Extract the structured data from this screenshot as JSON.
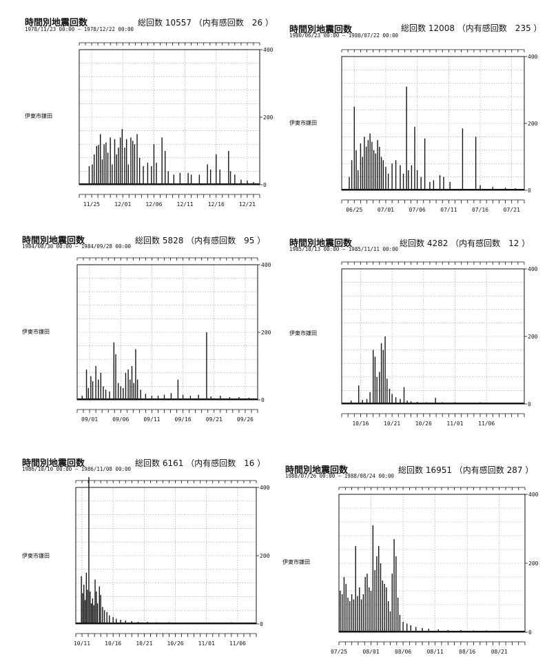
{
  "chart_data": [
    {
      "type": "bar",
      "title": "時間別地震回数",
      "date_range": "1978/11/23 00:00 — 1978/12/22 00:00",
      "total_label": "総回数 10557 （内有感回数　26 ）",
      "station": "伊東市鎌田",
      "yticks": [
        "400",
        "200",
        "0"
      ],
      "ylim": [
        0,
        400
      ],
      "xticks": [
        "11/25",
        "12/01",
        "12/06",
        "12/11",
        "12/16",
        "12/21"
      ],
      "days": 29,
      "first_label_day": 2,
      "bars": [
        [
          1.6,
          55
        ],
        [
          2.1,
          60
        ],
        [
          2.4,
          90
        ],
        [
          2.8,
          115
        ],
        [
          3.1,
          118
        ],
        [
          3.4,
          150
        ],
        [
          3.7,
          75
        ],
        [
          4.0,
          120
        ],
        [
          4.3,
          125
        ],
        [
          4.6,
          95
        ],
        [
          5.0,
          140
        ],
        [
          5.3,
          60
        ],
        [
          5.7,
          135
        ],
        [
          6.0,
          90
        ],
        [
          6.3,
          110
        ],
        [
          6.6,
          140
        ],
        [
          6.9,
          165
        ],
        [
          7.3,
          110
        ],
        [
          7.6,
          135
        ],
        [
          7.9,
          60
        ],
        [
          8.3,
          140
        ],
        [
          8.6,
          130
        ],
        [
          8.9,
          120
        ],
        [
          9.3,
          150
        ],
        [
          9.7,
          80
        ],
        [
          10.3,
          55
        ],
        [
          11.0,
          65
        ],
        [
          11.6,
          55
        ],
        [
          12.0,
          120
        ],
        [
          12.4,
          65
        ],
        [
          13.3,
          140
        ],
        [
          13.8,
          100
        ],
        [
          14.3,
          40
        ],
        [
          15.2,
          30
        ],
        [
          16.2,
          35
        ],
        [
          17.5,
          35
        ],
        [
          18.0,
          30
        ],
        [
          19.3,
          30
        ],
        [
          20.6,
          60
        ],
        [
          21.1,
          45
        ],
        [
          22.0,
          90
        ],
        [
          22.6,
          45
        ],
        [
          24.0,
          100
        ],
        [
          24.3,
          40
        ],
        [
          25.0,
          30
        ],
        [
          26.0,
          15
        ],
        [
          27.0,
          12
        ],
        [
          28.0,
          8
        ]
      ]
    },
    {
      "type": "bar",
      "title": "時間別地震回数",
      "date_range": "1980/06/23 00:00 — 1980/07/22 00:00",
      "total_label": "総回数 12008 （内有感回数　235 ）",
      "station": "伊東市鎌田",
      "yticks": [
        "400",
        "200",
        "0"
      ],
      "ylim": [
        0,
        400
      ],
      "xticks": [
        "06/25",
        "07/01",
        "07/06",
        "07/11",
        "07/16",
        "07/21"
      ],
      "days": 29,
      "first_label_day": 2,
      "bars": [
        [
          1.2,
          40
        ],
        [
          1.6,
          90
        ],
        [
          2.0,
          250
        ],
        [
          2.3,
          120
        ],
        [
          2.6,
          60
        ],
        [
          3.0,
          140
        ],
        [
          3.3,
          100
        ],
        [
          3.6,
          160
        ],
        [
          3.9,
          130
        ],
        [
          4.2,
          150
        ],
        [
          4.5,
          170
        ],
        [
          4.8,
          145
        ],
        [
          5.1,
          120
        ],
        [
          5.4,
          110
        ],
        [
          5.7,
          150
        ],
        [
          6.0,
          130
        ],
        [
          6.3,
          100
        ],
        [
          6.6,
          90
        ],
        [
          7.0,
          70
        ],
        [
          7.4,
          50
        ],
        [
          8.0,
          80
        ],
        [
          8.6,
          90
        ],
        [
          9.3,
          75
        ],
        [
          9.8,
          50
        ],
        [
          10.3,
          310
        ],
        [
          10.6,
          60
        ],
        [
          11.1,
          75
        ],
        [
          11.6,
          190
        ],
        [
          12.0,
          60
        ],
        [
          12.6,
          40
        ],
        [
          13.2,
          155
        ],
        [
          14.0,
          25
        ],
        [
          14.6,
          30
        ],
        [
          15.6,
          45
        ],
        [
          16.2,
          40
        ],
        [
          17.2,
          25
        ],
        [
          19.2,
          185
        ],
        [
          21.3,
          160
        ],
        [
          22.0,
          15
        ],
        [
          24.0,
          10
        ],
        [
          26.0,
          8
        ],
        [
          27.6,
          6
        ]
      ]
    },
    {
      "type": "bar",
      "title": "時間別地震回数",
      "date_range": "1984/08/30 00:00 — 1984/09/28 00:00",
      "total_label": "総回数 5828 （内有感回数　95 ）",
      "station": "伊東市鎌田",
      "yticks": [
        "400",
        "200",
        "0"
      ],
      "ylim": [
        0,
        400
      ],
      "xticks": [
        "09/01",
        "09/06",
        "09/11",
        "09/16",
        "09/21",
        "09/26"
      ],
      "days": 29,
      "first_label_day": 2,
      "bars": [
        [
          0.8,
          12
        ],
        [
          1.5,
          90
        ],
        [
          1.8,
          35
        ],
        [
          2.2,
          70
        ],
        [
          2.5,
          55
        ],
        [
          3.0,
          100
        ],
        [
          3.4,
          60
        ],
        [
          3.8,
          80
        ],
        [
          4.2,
          40
        ],
        [
          4.6,
          30
        ],
        [
          5.2,
          25
        ],
        [
          5.9,
          170
        ],
        [
          6.2,
          135
        ],
        [
          6.6,
          50
        ],
        [
          7.0,
          40
        ],
        [
          7.4,
          35
        ],
        [
          7.8,
          80
        ],
        [
          8.2,
          90
        ],
        [
          8.5,
          60
        ],
        [
          8.8,
          100
        ],
        [
          9.1,
          50
        ],
        [
          9.4,
          150
        ],
        [
          9.7,
          60
        ],
        [
          10.2,
          30
        ],
        [
          11.0,
          18
        ],
        [
          12.0,
          12
        ],
        [
          13.0,
          12
        ],
        [
          14.0,
          15
        ],
        [
          15.1,
          20
        ],
        [
          16.2,
          60
        ],
        [
          17.0,
          15
        ],
        [
          18.2,
          12
        ],
        [
          19.5,
          15
        ],
        [
          20.8,
          200
        ],
        [
          21.5,
          10
        ],
        [
          23.0,
          12
        ],
        [
          24.5,
          8
        ],
        [
          26.0,
          8
        ],
        [
          27.6,
          6
        ]
      ]
    },
    {
      "type": "bar",
      "title": "時間別地震回数",
      "date_range": "1985/10/13 00:00 — 1985/11/11 00:00",
      "total_label": "総回数 4282 （内有感回数　12 ）",
      "station": "伊東市鎌田",
      "yticks": [
        "400",
        "200",
        "0"
      ],
      "ylim": [
        0,
        400
      ],
      "xticks": [
        "10/16",
        "10/21",
        "10/26",
        "11/01",
        "11/06"
      ],
      "days": 29,
      "first_label_day": 3,
      "bars": [
        [
          1.5,
          10
        ],
        [
          2.7,
          55
        ],
        [
          3.3,
          12
        ],
        [
          4.0,
          15
        ],
        [
          4.5,
          35
        ],
        [
          5.0,
          160
        ],
        [
          5.3,
          140
        ],
        [
          5.6,
          80
        ],
        [
          6.0,
          95
        ],
        [
          6.3,
          180
        ],
        [
          6.6,
          160
        ],
        [
          6.9,
          200
        ],
        [
          7.2,
          75
        ],
        [
          7.6,
          45
        ],
        [
          8.0,
          30
        ],
        [
          8.6,
          20
        ],
        [
          9.3,
          15
        ],
        [
          9.9,
          50
        ],
        [
          10.4,
          10
        ],
        [
          11.0,
          8
        ],
        [
          12.0,
          6
        ],
        [
          13.5,
          5
        ],
        [
          14.9,
          18
        ],
        [
          16.0,
          5
        ],
        [
          18.0,
          5
        ],
        [
          20.0,
          4
        ],
        [
          22.0,
          5
        ],
        [
          24.0,
          4
        ],
        [
          26.0,
          4
        ],
        [
          27.5,
          3
        ]
      ]
    },
    {
      "type": "bar",
      "title": "時間別地震回数",
      "date_range": "1986/10/10 00:00 — 1986/11/08 00:00",
      "total_label": "総回数 6161 （内有感回数　16 ）",
      "station": "伊東市鎌田",
      "yticks": [
        "400",
        "200",
        "0"
      ],
      "ylim": [
        0,
        400
      ],
      "xticks": [
        "10/11",
        "10/16",
        "10/21",
        "10/26",
        "11/01",
        "11/06"
      ],
      "days": 29,
      "first_label_day": 1,
      "bars": [
        [
          0.9,
          140
        ],
        [
          1.1,
          90
        ],
        [
          1.3,
          115
        ],
        [
          1.5,
          70
        ],
        [
          1.7,
          150
        ],
        [
          1.9,
          100
        ],
        [
          2.1,
          430
        ],
        [
          2.3,
          95
        ],
        [
          2.5,
          60
        ],
        [
          2.7,
          75
        ],
        [
          2.9,
          55
        ],
        [
          3.1,
          130
        ],
        [
          3.3,
          95
        ],
        [
          3.5,
          60
        ],
        [
          3.8,
          110
        ],
        [
          4.0,
          85
        ],
        [
          4.3,
          50
        ],
        [
          4.6,
          40
        ],
        [
          5.0,
          35
        ],
        [
          5.4,
          25
        ],
        [
          6.0,
          20
        ],
        [
          6.5,
          15
        ],
        [
          7.2,
          12
        ],
        [
          8.0,
          10
        ],
        [
          9.0,
          8
        ],
        [
          10.0,
          6
        ],
        [
          11.5,
          6
        ],
        [
          13.0,
          5
        ],
        [
          15.0,
          5
        ],
        [
          17.0,
          4
        ],
        [
          19.0,
          4
        ],
        [
          21.0,
          4
        ],
        [
          23.0,
          3
        ],
        [
          25.0,
          5
        ],
        [
          27.0,
          3
        ],
        [
          28.5,
          3
        ]
      ]
    },
    {
      "type": "bar",
      "title": "時間別地震回数",
      "date_range": "1988/07/26 00:00 — 1988/08/24 00:00",
      "total_label": "総回数 16951 （内有感回数 287 ）",
      "station": "伊東市鎌田",
      "yticks": [
        "400",
        "200",
        "0"
      ],
      "ylim": [
        0,
        400
      ],
      "xticks": [
        "07/25",
        "08/01",
        "08/06",
        "08/11",
        "08/16",
        "08/21"
      ],
      "days": 29,
      "first_label_day": 0,
      "bars": [
        [
          0.2,
          120
        ],
        [
          0.5,
          110
        ],
        [
          0.8,
          160
        ],
        [
          1.1,
          140
        ],
        [
          1.4,
          100
        ],
        [
          1.7,
          90
        ],
        [
          2.0,
          110
        ],
        [
          2.3,
          95
        ],
        [
          2.6,
          250
        ],
        [
          2.9,
          105
        ],
        [
          3.2,
          130
        ],
        [
          3.5,
          95
        ],
        [
          3.8,
          110
        ],
        [
          4.1,
          160
        ],
        [
          4.4,
          170
        ],
        [
          4.7,
          130
        ],
        [
          5.0,
          120
        ],
        [
          5.3,
          310
        ],
        [
          5.6,
          180
        ],
        [
          5.9,
          220
        ],
        [
          6.2,
          250
        ],
        [
          6.5,
          200
        ],
        [
          6.8,
          150
        ],
        [
          7.1,
          140
        ],
        [
          7.4,
          130
        ],
        [
          7.7,
          90
        ],
        [
          8.0,
          60
        ],
        [
          8.3,
          170
        ],
        [
          8.6,
          270
        ],
        [
          8.9,
          220
        ],
        [
          9.2,
          100
        ],
        [
          9.5,
          50
        ],
        [
          10.0,
          30
        ],
        [
          10.6,
          25
        ],
        [
          11.2,
          20
        ],
        [
          12.0,
          15
        ],
        [
          13.0,
          12
        ],
        [
          14.0,
          10
        ],
        [
          15.5,
          8
        ],
        [
          17.0,
          6
        ],
        [
          19.0,
          6
        ],
        [
          21.0,
          5
        ],
        [
          23.0,
          5
        ],
        [
          25.0,
          4
        ],
        [
          27.0,
          4
        ],
        [
          28.5,
          3
        ]
      ]
    }
  ]
}
